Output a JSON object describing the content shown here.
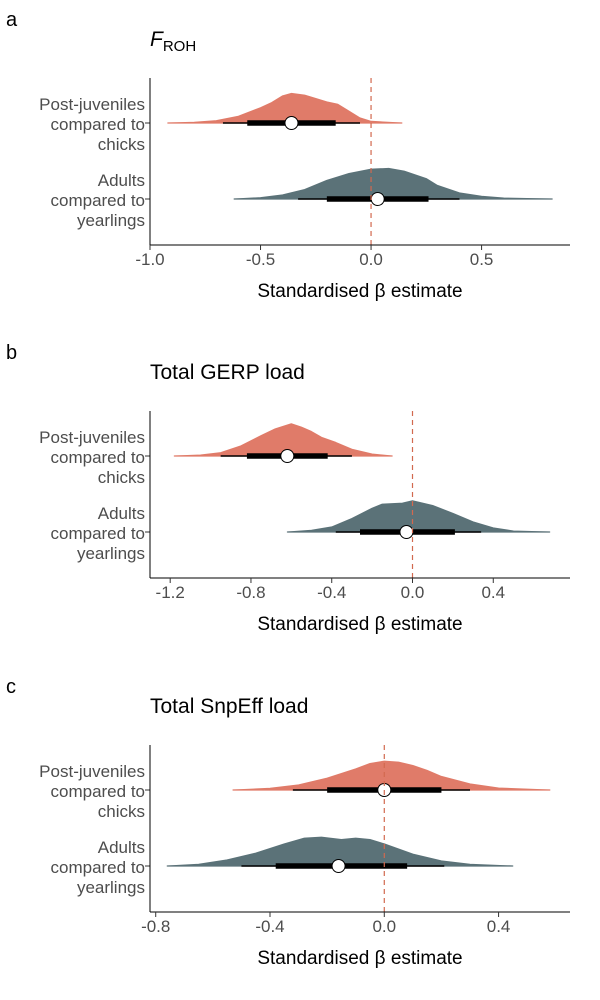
{
  "chart_data": [
    {
      "type": "area",
      "panel_label": "a",
      "title_main": "F",
      "title_sub": "ROH",
      "xlabel": "Standardised β estimate",
      "xlim": [
        -1.0,
        0.9
      ],
      "xticks": [
        -1.0,
        -0.5,
        0.0,
        0.5
      ],
      "xtick_labels": [
        "-1.0",
        "-0.5",
        "0.0",
        "0.5"
      ],
      "reference_line": 0.0,
      "series": [
        {
          "category_lines": [
            "Post-juveniles",
            "compared to",
            "chicks"
          ],
          "color": "#e07b69",
          "median": -0.36,
          "interval_66": [
            -0.56,
            -0.16
          ],
          "interval_95": [
            -0.67,
            -0.05
          ],
          "range": [
            -0.92,
            0.14
          ],
          "density": [
            [
              -0.92,
              0.0
            ],
            [
              -0.8,
              0.02
            ],
            [
              -0.7,
              0.07
            ],
            [
              -0.6,
              0.2
            ],
            [
              -0.5,
              0.45
            ],
            [
              -0.45,
              0.6
            ],
            [
              -0.4,
              0.8
            ],
            [
              -0.36,
              0.87
            ],
            [
              -0.3,
              0.82
            ],
            [
              -0.25,
              0.72
            ],
            [
              -0.2,
              0.62
            ],
            [
              -0.15,
              0.55
            ],
            [
              -0.1,
              0.35
            ],
            [
              -0.05,
              0.15
            ],
            [
              0.0,
              0.05
            ],
            [
              0.14,
              0.0
            ]
          ]
        },
        {
          "category_lines": [
            "Adults",
            "compared to",
            "yearlings"
          ],
          "color": "#5b7278",
          "median": 0.03,
          "interval_66": [
            -0.2,
            0.26
          ],
          "interval_95": [
            -0.33,
            0.4
          ],
          "range": [
            -0.62,
            0.82
          ],
          "density": [
            [
              -0.62,
              0.0
            ],
            [
              -0.5,
              0.04
            ],
            [
              -0.4,
              0.12
            ],
            [
              -0.3,
              0.28
            ],
            [
              -0.2,
              0.55
            ],
            [
              -0.1,
              0.75
            ],
            [
              0.0,
              0.88
            ],
            [
              0.08,
              0.9
            ],
            [
              0.15,
              0.82
            ],
            [
              0.25,
              0.6
            ],
            [
              0.3,
              0.4
            ],
            [
              0.4,
              0.18
            ],
            [
              0.5,
              0.08
            ],
            [
              0.6,
              0.03
            ],
            [
              0.82,
              0.0
            ]
          ]
        }
      ]
    },
    {
      "type": "area",
      "panel_label": "b",
      "title_main": "Total GERP load",
      "title_sub": "",
      "xlabel": "Standardised β estimate",
      "xlim": [
        -1.3,
        0.78
      ],
      "xticks": [
        -1.2,
        -0.8,
        -0.4,
        0.0,
        0.4
      ],
      "xtick_labels": [
        "-1.2",
        "-0.8",
        "-0.4",
        "0.0",
        "0.4"
      ],
      "reference_line": 0.0,
      "series": [
        {
          "category_lines": [
            "Post-juveniles",
            "compared to",
            "chicks"
          ],
          "color": "#e07b69",
          "median": -0.62,
          "interval_66": [
            -0.82,
            -0.42
          ],
          "interval_95": [
            -0.95,
            -0.3
          ],
          "range": [
            -1.18,
            -0.1
          ],
          "density": [
            [
              -1.18,
              0.0
            ],
            [
              -1.05,
              0.03
            ],
            [
              -0.95,
              0.1
            ],
            [
              -0.85,
              0.3
            ],
            [
              -0.75,
              0.6
            ],
            [
              -0.68,
              0.8
            ],
            [
              -0.6,
              0.95
            ],
            [
              -0.55,
              0.85
            ],
            [
              -0.5,
              0.72
            ],
            [
              -0.45,
              0.55
            ],
            [
              -0.38,
              0.4
            ],
            [
              -0.3,
              0.2
            ],
            [
              -0.2,
              0.06
            ],
            [
              -0.1,
              0.0
            ]
          ]
        },
        {
          "category_lines": [
            "Adults",
            "compared to",
            "yearlings"
          ],
          "color": "#5b7278",
          "median": -0.03,
          "interval_66": [
            -0.26,
            0.21
          ],
          "interval_95": [
            -0.38,
            0.34
          ],
          "range": [
            -0.62,
            0.68
          ],
          "density": [
            [
              -0.62,
              0.0
            ],
            [
              -0.5,
              0.05
            ],
            [
              -0.4,
              0.15
            ],
            [
              -0.3,
              0.4
            ],
            [
              -0.2,
              0.7
            ],
            [
              -0.15,
              0.82
            ],
            [
              -0.05,
              0.85
            ],
            [
              0.0,
              0.92
            ],
            [
              0.1,
              0.78
            ],
            [
              0.2,
              0.55
            ],
            [
              0.3,
              0.3
            ],
            [
              0.4,
              0.12
            ],
            [
              0.5,
              0.03
            ],
            [
              0.68,
              0.0
            ]
          ]
        }
      ]
    },
    {
      "type": "area",
      "panel_label": "c",
      "title_main": "Total SnpEff load",
      "title_sub": "",
      "xlabel": "Standardised β estimate",
      "xlim": [
        -0.82,
        0.65
      ],
      "xticks": [
        -0.8,
        -0.4,
        0.0,
        0.4
      ],
      "xtick_labels": [
        "-0.8",
        "-0.4",
        "0.0",
        "0.4"
      ],
      "reference_line": 0.0,
      "series": [
        {
          "category_lines": [
            "Post-juveniles",
            "compared to",
            "chicks"
          ],
          "color": "#e07b69",
          "median": 0.0,
          "interval_66": [
            -0.2,
            0.2
          ],
          "interval_95": [
            -0.32,
            0.3
          ],
          "range": [
            -0.53,
            0.58
          ],
          "density": [
            [
              -0.53,
              0.0
            ],
            [
              -0.4,
              0.05
            ],
            [
              -0.3,
              0.15
            ],
            [
              -0.2,
              0.35
            ],
            [
              -0.1,
              0.62
            ],
            [
              -0.05,
              0.78
            ],
            [
              0.0,
              0.85
            ],
            [
              0.05,
              0.82
            ],
            [
              0.1,
              0.72
            ],
            [
              0.15,
              0.58
            ],
            [
              0.2,
              0.4
            ],
            [
              0.3,
              0.18
            ],
            [
              0.4,
              0.06
            ],
            [
              0.58,
              0.0
            ]
          ]
        },
        {
          "category_lines": [
            "Adults",
            "compared to",
            "yearlings"
          ],
          "color": "#5b7278",
          "median": -0.16,
          "interval_66": [
            -0.38,
            0.08
          ],
          "interval_95": [
            -0.5,
            0.21
          ],
          "range": [
            -0.76,
            0.45
          ],
          "density": [
            [
              -0.76,
              0.0
            ],
            [
              -0.65,
              0.05
            ],
            [
              -0.55,
              0.18
            ],
            [
              -0.45,
              0.38
            ],
            [
              -0.35,
              0.65
            ],
            [
              -0.28,
              0.82
            ],
            [
              -0.22,
              0.85
            ],
            [
              -0.15,
              0.78
            ],
            [
              -0.1,
              0.82
            ],
            [
              -0.05,
              0.78
            ],
            [
              0.0,
              0.65
            ],
            [
              0.1,
              0.35
            ],
            [
              0.2,
              0.15
            ],
            [
              0.3,
              0.05
            ],
            [
              0.45,
              0.0
            ]
          ]
        }
      ]
    }
  ]
}
